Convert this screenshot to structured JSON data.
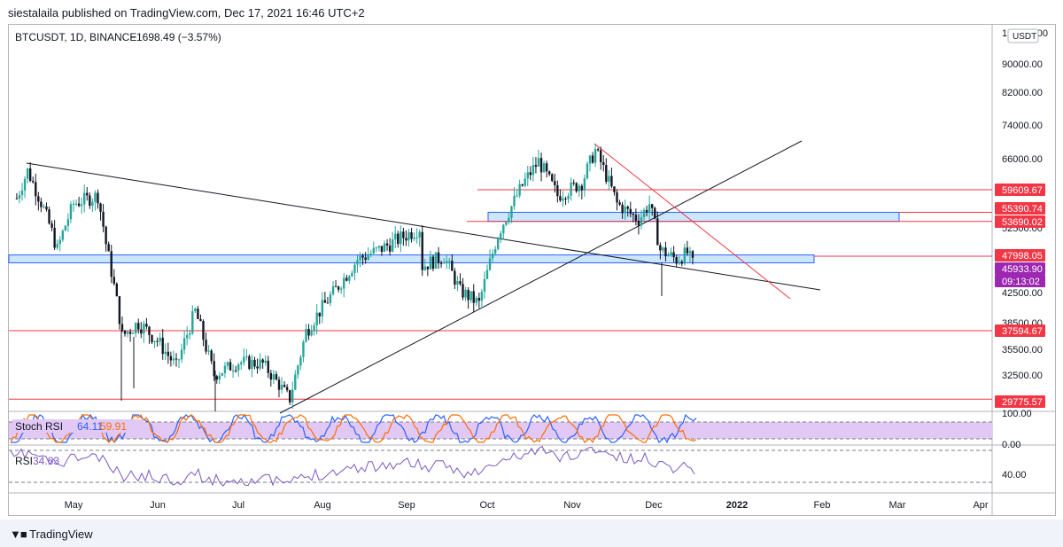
{
  "header": {
    "published": "siestalaila published on TradingView.com, Dec 17, 2021 16:46 UTC+2"
  },
  "footer": {
    "brand": "TradingView"
  },
  "symbol_line": {
    "symbol": "BTCUSDT, 1D, BINANCE",
    "change": "−1698.49 (−3.57%)"
  },
  "currency_badge": "USDT",
  "price_axis": {
    "ticks": [
      "100000.00",
      "90000.00",
      "82000.00",
      "74000.00",
      "66000.00",
      "52500.00",
      "42500.00",
      "38500.00",
      "35500.00",
      "32500.00"
    ],
    "top_tick_partial": "100000.00"
  },
  "price_badges": [
    {
      "label": "59609.67",
      "color": "#f23645"
    },
    {
      "label": "55390.74",
      "color": "#f23645"
    },
    {
      "label": "53690.02",
      "color": "#f23645"
    },
    {
      "label": "47998.05",
      "color": "#f23645"
    },
    {
      "label": "45933.90",
      "color": "#9c27b0"
    },
    {
      "label": "09:13:02",
      "color": "#9c27b0"
    },
    {
      "label": "37594.67",
      "color": "#f23645"
    },
    {
      "label": "29775.57",
      "color": "#f23645"
    }
  ],
  "stoch_panel": {
    "name": "Stoch RSI",
    "k": "64.11",
    "d": "59.91",
    "axis": [
      "100.00",
      "0.00"
    ]
  },
  "rsi_panel": {
    "name": "RSI",
    "value": "34.63",
    "axis": [
      "40.00"
    ]
  },
  "time_axis": [
    "May",
    "Jun",
    "Jul",
    "Aug",
    "Sep",
    "Oct",
    "Nov",
    "Dec",
    "2022",
    "Feb",
    "Mar",
    "Apr"
  ],
  "colors": {
    "up": "#26a69a",
    "down": "#131722",
    "hline": "#f23645",
    "zone_fill": "#bbdefb",
    "zone_border": "#2962ff",
    "stoch_bg": "#e1c8f5",
    "k": "#2962ff",
    "d": "#ff6d00",
    "rsi": "#7e57c2"
  },
  "chart_data": {
    "type": "candlestick",
    "symbol": "BTCUSDT",
    "interval": "1D",
    "exchange": "BINANCE",
    "last_price": 45933.9,
    "change": -1698.49,
    "change_pct": -3.57,
    "horizontal_levels": [
      59609.67,
      55390.74,
      53690.02,
      47998.05,
      37594.67,
      29775.57
    ],
    "zones": [
      [
        53700,
        55400
      ],
      [
        47000,
        48200
      ]
    ],
    "y_range": [
      28500,
      100000
    ],
    "price_path": [
      {
        "date": "2021-04-10",
        "close": 58000
      },
      {
        "date": "2021-04-14",
        "close": 63500
      },
      {
        "date": "2021-04-20",
        "close": 56000
      },
      {
        "date": "2021-04-25",
        "close": 49000
      },
      {
        "date": "2021-05-01",
        "close": 57000
      },
      {
        "date": "2021-05-10",
        "close": 58500
      },
      {
        "date": "2021-05-13",
        "close": 50000
      },
      {
        "date": "2021-05-19",
        "close": 37000
      },
      {
        "date": "2021-05-25",
        "close": 38500
      },
      {
        "date": "2021-06-01",
        "close": 36500
      },
      {
        "date": "2021-06-08",
        "close": 33500
      },
      {
        "date": "2021-06-15",
        "close": 40000
      },
      {
        "date": "2021-06-22",
        "close": 32500
      },
      {
        "date": "2021-07-01",
        "close": 34000
      },
      {
        "date": "2021-07-10",
        "close": 33800
      },
      {
        "date": "2021-07-20",
        "close": 29800
      },
      {
        "date": "2021-07-26",
        "close": 37500
      },
      {
        "date": "2021-08-07",
        "close": 43500
      },
      {
        "date": "2021-08-14",
        "close": 47500
      },
      {
        "date": "2021-08-22",
        "close": 49000
      },
      {
        "date": "2021-09-06",
        "close": 52500
      },
      {
        "date": "2021-09-07",
        "close": 46500
      },
      {
        "date": "2021-09-15",
        "close": 48000
      },
      {
        "date": "2021-09-21",
        "close": 42800
      },
      {
        "date": "2021-09-28",
        "close": 41000
      },
      {
        "date": "2021-10-05",
        "close": 51500
      },
      {
        "date": "2021-10-15",
        "close": 61500
      },
      {
        "date": "2021-10-20",
        "close": 65500
      },
      {
        "date": "2021-10-27",
        "close": 58500
      },
      {
        "date": "2021-11-05",
        "close": 61000
      },
      {
        "date": "2021-11-10",
        "close": 68000
      },
      {
        "date": "2021-11-18",
        "close": 57000
      },
      {
        "date": "2021-11-26",
        "close": 54000
      },
      {
        "date": "2021-11-30",
        "close": 57000
      },
      {
        "date": "2021-12-04",
        "close": 49000
      },
      {
        "date": "2021-12-10",
        "close": 47500
      },
      {
        "date": "2021-12-14",
        "close": 48500
      },
      {
        "date": "2021-12-17",
        "close": 45934
      }
    ]
  }
}
